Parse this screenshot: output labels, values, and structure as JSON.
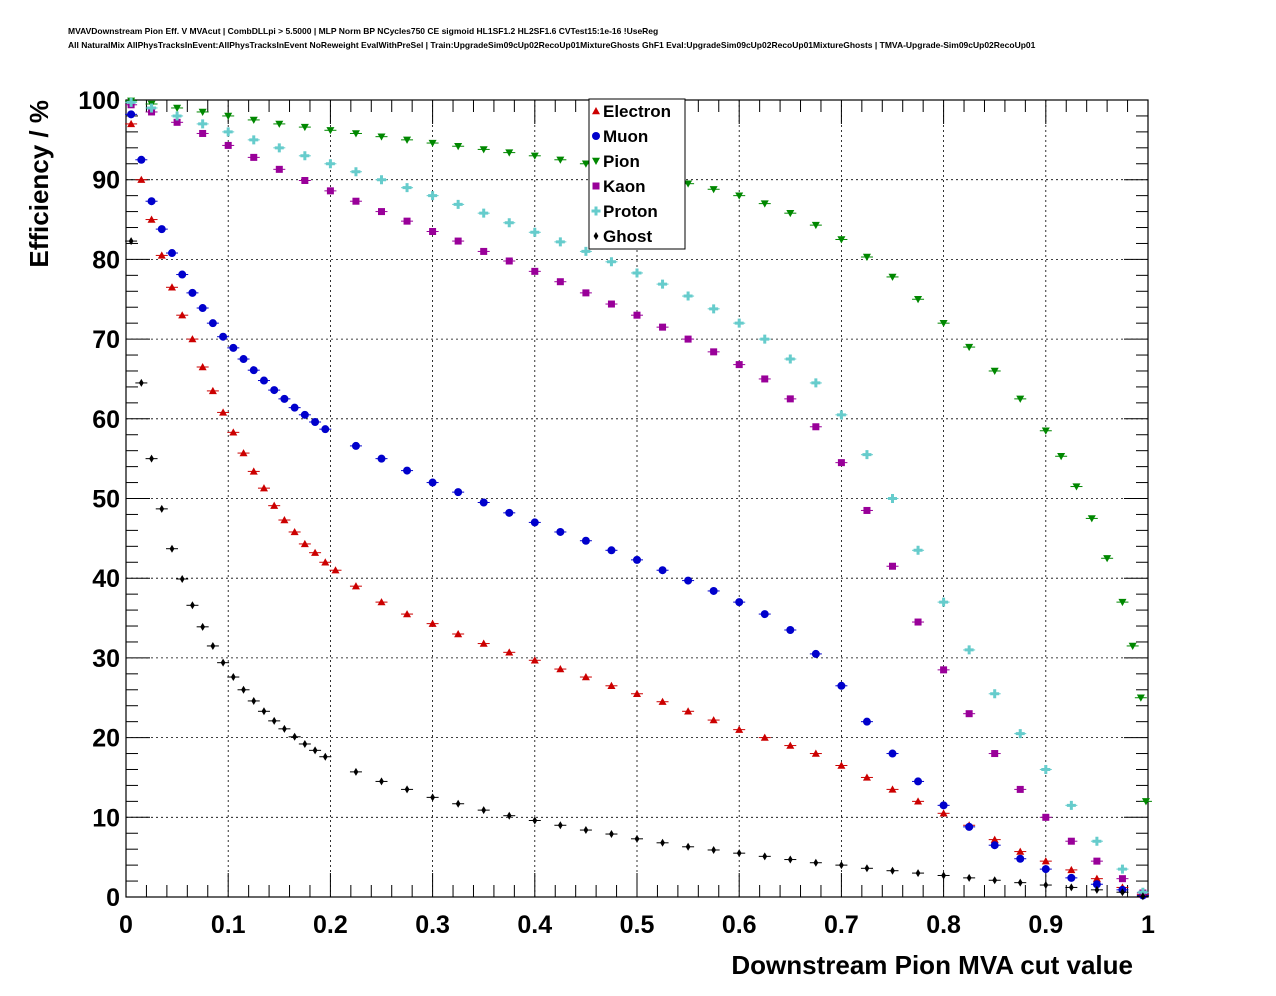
{
  "header": {
    "title_line1": "MVAVDownstream Pion Eff. V MVAcut | CombDLLpi > 5.5000 | MLP Norm BP NCycles750 CE sigmoid HL1SF1.2 HL2SF1.6 CVTest15:1e-16 !UseReg",
    "title_line2": "All NaturalMix AllPhysTracksInEvent:AllPhysTracksInEvent NoReweight EvalWithPreSel | Train:UpgradeSim09cUp02RecoUp01MixtureGhosts GhF1 Eval:UpgradeSim09cUp02RecoUp01MixtureGhosts | TMVA-Upgrade-Sim09cUp02RecoUp01"
  },
  "chart_data": {
    "type": "scatter",
    "title": "",
    "xlabel": "Downstream Pion MVA cut value",
    "ylabel": "Efficiency / %",
    "xlim": [
      0,
      1
    ],
    "ylim": [
      0,
      100
    ],
    "xticks": [
      0,
      0.1,
      0.2,
      0.3,
      0.4,
      0.5,
      0.6,
      0.7,
      0.8,
      0.9,
      1
    ],
    "xtick_labels": [
      "0",
      "0.1",
      "0.2",
      "0.3",
      "0.4",
      "0.5",
      "0.6",
      "0.7",
      "0.8",
      "0.9",
      "1"
    ],
    "yticks": [
      0,
      10,
      20,
      30,
      40,
      50,
      60,
      70,
      80,
      90,
      100
    ],
    "ytick_labels": [
      "0",
      "10",
      "20",
      "30",
      "40",
      "50",
      "60",
      "70",
      "80",
      "90",
      "100"
    ],
    "grid": true,
    "legend_position": "top-center",
    "series": [
      {
        "name": "Electron",
        "color": "#cc0000",
        "marker": "triangle-up",
        "points": [
          [
            0.005,
            97
          ],
          [
            0.015,
            90
          ],
          [
            0.025,
            85
          ],
          [
            0.035,
            80.5
          ],
          [
            0.045,
            76.5
          ],
          [
            0.055,
            73
          ],
          [
            0.065,
            70
          ],
          [
            0.075,
            66.5
          ],
          [
            0.085,
            63.5
          ],
          [
            0.095,
            60.8
          ],
          [
            0.105,
            58.3
          ],
          [
            0.115,
            55.7
          ],
          [
            0.125,
            53.4
          ],
          [
            0.135,
            51.3
          ],
          [
            0.145,
            49.1
          ],
          [
            0.155,
            47.3
          ],
          [
            0.165,
            45.8
          ],
          [
            0.175,
            44.3
          ],
          [
            0.185,
            43.2
          ],
          [
            0.195,
            42
          ],
          [
            0.205,
            41
          ],
          [
            0.225,
            39
          ],
          [
            0.25,
            37
          ],
          [
            0.275,
            35.5
          ],
          [
            0.3,
            34.3
          ],
          [
            0.325,
            33
          ],
          [
            0.35,
            31.8
          ],
          [
            0.375,
            30.7
          ],
          [
            0.4,
            29.7
          ],
          [
            0.425,
            28.6
          ],
          [
            0.45,
            27.6
          ],
          [
            0.475,
            26.5
          ],
          [
            0.5,
            25.5
          ],
          [
            0.525,
            24.5
          ],
          [
            0.55,
            23.3
          ],
          [
            0.575,
            22.2
          ],
          [
            0.6,
            21
          ],
          [
            0.625,
            20
          ],
          [
            0.65,
            19
          ],
          [
            0.675,
            18
          ],
          [
            0.7,
            16.5
          ],
          [
            0.725,
            15
          ],
          [
            0.75,
            13.5
          ],
          [
            0.775,
            12
          ],
          [
            0.8,
            10.5
          ],
          [
            0.825,
            9
          ],
          [
            0.85,
            7.2
          ],
          [
            0.875,
            5.7
          ],
          [
            0.9,
            4.5
          ],
          [
            0.925,
            3.4
          ],
          [
            0.95,
            2.3
          ],
          [
            0.975,
            1.2
          ],
          [
            0.995,
            0.3
          ]
        ]
      },
      {
        "name": "Muon",
        "color": "#0000cc",
        "marker": "circle",
        "points": [
          [
            0.005,
            98.2
          ],
          [
            0.015,
            92.5
          ],
          [
            0.025,
            87.3
          ],
          [
            0.035,
            83.8
          ],
          [
            0.045,
            80.8
          ],
          [
            0.055,
            78.1
          ],
          [
            0.065,
            75.8
          ],
          [
            0.075,
            73.9
          ],
          [
            0.085,
            72
          ],
          [
            0.095,
            70.3
          ],
          [
            0.105,
            68.9
          ],
          [
            0.115,
            67.5
          ],
          [
            0.125,
            66.1
          ],
          [
            0.135,
            64.8
          ],
          [
            0.145,
            63.6
          ],
          [
            0.155,
            62.5
          ],
          [
            0.165,
            61.4
          ],
          [
            0.175,
            60.5
          ],
          [
            0.185,
            59.6
          ],
          [
            0.195,
            58.7
          ],
          [
            0.225,
            56.6
          ],
          [
            0.25,
            55
          ],
          [
            0.275,
            53.5
          ],
          [
            0.3,
            52
          ],
          [
            0.325,
            50.8
          ],
          [
            0.35,
            49.5
          ],
          [
            0.375,
            48.2
          ],
          [
            0.4,
            47
          ],
          [
            0.425,
            45.8
          ],
          [
            0.45,
            44.7
          ],
          [
            0.475,
            43.5
          ],
          [
            0.5,
            42.3
          ],
          [
            0.525,
            41
          ],
          [
            0.55,
            39.7
          ],
          [
            0.575,
            38.4
          ],
          [
            0.6,
            37
          ],
          [
            0.625,
            35.5
          ],
          [
            0.65,
            33.5
          ],
          [
            0.675,
            30.5
          ],
          [
            0.7,
            26.5
          ],
          [
            0.725,
            22
          ],
          [
            0.75,
            18
          ],
          [
            0.775,
            14.5
          ],
          [
            0.8,
            11.5
          ],
          [
            0.825,
            8.8
          ],
          [
            0.85,
            6.5
          ],
          [
            0.875,
            4.8
          ],
          [
            0.9,
            3.5
          ],
          [
            0.925,
            2.4
          ],
          [
            0.95,
            1.6
          ],
          [
            0.975,
            0.9
          ],
          [
            0.995,
            0.2
          ]
        ]
      },
      {
        "name": "Pion",
        "color": "#008800",
        "marker": "triangle-down",
        "points": [
          [
            0.005,
            99.9
          ],
          [
            0.025,
            99.5
          ],
          [
            0.05,
            99
          ],
          [
            0.075,
            98.5
          ],
          [
            0.1,
            98
          ],
          [
            0.125,
            97.5
          ],
          [
            0.15,
            97
          ],
          [
            0.175,
            96.6
          ],
          [
            0.2,
            96.2
          ],
          [
            0.225,
            95.8
          ],
          [
            0.25,
            95.4
          ],
          [
            0.275,
            95
          ],
          [
            0.3,
            94.6
          ],
          [
            0.325,
            94.2
          ],
          [
            0.35,
            93.8
          ],
          [
            0.375,
            93.4
          ],
          [
            0.4,
            93
          ],
          [
            0.425,
            92.5
          ],
          [
            0.45,
            92
          ],
          [
            0.475,
            91.4
          ],
          [
            0.5,
            90.8
          ],
          [
            0.525,
            90.2
          ],
          [
            0.55,
            89.5
          ],
          [
            0.575,
            88.8
          ],
          [
            0.6,
            88
          ],
          [
            0.625,
            87
          ],
          [
            0.65,
            85.8
          ],
          [
            0.675,
            84.3
          ],
          [
            0.7,
            82.5
          ],
          [
            0.725,
            80.3
          ],
          [
            0.75,
            77.8
          ],
          [
            0.775,
            75
          ],
          [
            0.8,
            72
          ],
          [
            0.825,
            69
          ],
          [
            0.85,
            66
          ],
          [
            0.875,
            62.5
          ],
          [
            0.9,
            58.5
          ],
          [
            0.915,
            55.3
          ],
          [
            0.93,
            51.5
          ],
          [
            0.945,
            47.5
          ],
          [
            0.96,
            42.5
          ],
          [
            0.975,
            37
          ],
          [
            0.985,
            31.5
          ],
          [
            0.993,
            25
          ],
          [
            0.998,
            12
          ]
        ]
      },
      {
        "name": "Kaon",
        "color": "#990099",
        "marker": "square",
        "points": [
          [
            0.005,
            99.4
          ],
          [
            0.025,
            98.5
          ],
          [
            0.05,
            97.2
          ],
          [
            0.075,
            95.8
          ],
          [
            0.1,
            94.3
          ],
          [
            0.125,
            92.8
          ],
          [
            0.15,
            91.3
          ],
          [
            0.175,
            89.9
          ],
          [
            0.2,
            88.6
          ],
          [
            0.225,
            87.3
          ],
          [
            0.25,
            86
          ],
          [
            0.275,
            84.8
          ],
          [
            0.3,
            83.5
          ],
          [
            0.325,
            82.3
          ],
          [
            0.35,
            81
          ],
          [
            0.375,
            79.8
          ],
          [
            0.4,
            78.5
          ],
          [
            0.425,
            77.2
          ],
          [
            0.45,
            75.8
          ],
          [
            0.475,
            74.4
          ],
          [
            0.5,
            73
          ],
          [
            0.525,
            71.5
          ],
          [
            0.55,
            70
          ],
          [
            0.575,
            68.4
          ],
          [
            0.6,
            66.8
          ],
          [
            0.625,
            65
          ],
          [
            0.65,
            62.5
          ],
          [
            0.675,
            59
          ],
          [
            0.7,
            54.5
          ],
          [
            0.725,
            48.5
          ],
          [
            0.75,
            41.5
          ],
          [
            0.775,
            34.5
          ],
          [
            0.8,
            28.5
          ],
          [
            0.825,
            23
          ],
          [
            0.85,
            18
          ],
          [
            0.875,
            13.5
          ],
          [
            0.9,
            10
          ],
          [
            0.925,
            7
          ],
          [
            0.95,
            4.5
          ],
          [
            0.975,
            2.3
          ],
          [
            0.995,
            0.5
          ]
        ]
      },
      {
        "name": "Proton",
        "color": "#66cccc",
        "marker": "cross",
        "points": [
          [
            0.005,
            99.7
          ],
          [
            0.025,
            99
          ],
          [
            0.05,
            98
          ],
          [
            0.075,
            97
          ],
          [
            0.1,
            96
          ],
          [
            0.125,
            95
          ],
          [
            0.15,
            94
          ],
          [
            0.175,
            93
          ],
          [
            0.2,
            92
          ],
          [
            0.225,
            91
          ],
          [
            0.25,
            90
          ],
          [
            0.275,
            89
          ],
          [
            0.3,
            88
          ],
          [
            0.325,
            86.9
          ],
          [
            0.35,
            85.8
          ],
          [
            0.375,
            84.6
          ],
          [
            0.4,
            83.4
          ],
          [
            0.425,
            82.2
          ],
          [
            0.45,
            81
          ],
          [
            0.475,
            79.7
          ],
          [
            0.5,
            78.3
          ],
          [
            0.525,
            76.9
          ],
          [
            0.55,
            75.4
          ],
          [
            0.575,
            73.8
          ],
          [
            0.6,
            72
          ],
          [
            0.625,
            70
          ],
          [
            0.65,
            67.5
          ],
          [
            0.675,
            64.5
          ],
          [
            0.7,
            60.5
          ],
          [
            0.725,
            55.5
          ],
          [
            0.75,
            50
          ],
          [
            0.775,
            43.5
          ],
          [
            0.8,
            37
          ],
          [
            0.825,
            31
          ],
          [
            0.85,
            25.5
          ],
          [
            0.875,
            20.5
          ],
          [
            0.9,
            16
          ],
          [
            0.925,
            11.5
          ],
          [
            0.95,
            7
          ],
          [
            0.975,
            3.5
          ],
          [
            0.995,
            0.6
          ]
        ]
      },
      {
        "name": "Ghost",
        "color": "#000000",
        "marker": "diamond",
        "points": [
          [
            0.005,
            82.3
          ],
          [
            0.015,
            64.5
          ],
          [
            0.025,
            55
          ],
          [
            0.035,
            48.7
          ],
          [
            0.045,
            43.7
          ],
          [
            0.055,
            39.9
          ],
          [
            0.065,
            36.6
          ],
          [
            0.075,
            33.9
          ],
          [
            0.085,
            31.5
          ],
          [
            0.095,
            29.4
          ],
          [
            0.105,
            27.6
          ],
          [
            0.115,
            26
          ],
          [
            0.125,
            24.6
          ],
          [
            0.135,
            23.3
          ],
          [
            0.145,
            22.1
          ],
          [
            0.155,
            21.1
          ],
          [
            0.165,
            20.1
          ],
          [
            0.175,
            19.2
          ],
          [
            0.185,
            18.4
          ],
          [
            0.195,
            17.6
          ],
          [
            0.225,
            15.7
          ],
          [
            0.25,
            14.5
          ],
          [
            0.275,
            13.5
          ],
          [
            0.3,
            12.5
          ],
          [
            0.325,
            11.7
          ],
          [
            0.35,
            10.9
          ],
          [
            0.375,
            10.2
          ],
          [
            0.4,
            9.6
          ],
          [
            0.425,
            9
          ],
          [
            0.45,
            8.4
          ],
          [
            0.475,
            7.9
          ],
          [
            0.5,
            7.3
          ],
          [
            0.525,
            6.8
          ],
          [
            0.55,
            6.3
          ],
          [
            0.575,
            5.9
          ],
          [
            0.6,
            5.5
          ],
          [
            0.625,
            5.1
          ],
          [
            0.65,
            4.7
          ],
          [
            0.675,
            4.3
          ],
          [
            0.7,
            4
          ],
          [
            0.725,
            3.6
          ],
          [
            0.75,
            3.3
          ],
          [
            0.775,
            3
          ],
          [
            0.8,
            2.7
          ],
          [
            0.825,
            2.4
          ],
          [
            0.85,
            2.1
          ],
          [
            0.875,
            1.8
          ],
          [
            0.9,
            1.5
          ],
          [
            0.925,
            1.2
          ],
          [
            0.95,
            0.9
          ],
          [
            0.975,
            0.6
          ],
          [
            0.995,
            0.1
          ]
        ]
      }
    ]
  }
}
